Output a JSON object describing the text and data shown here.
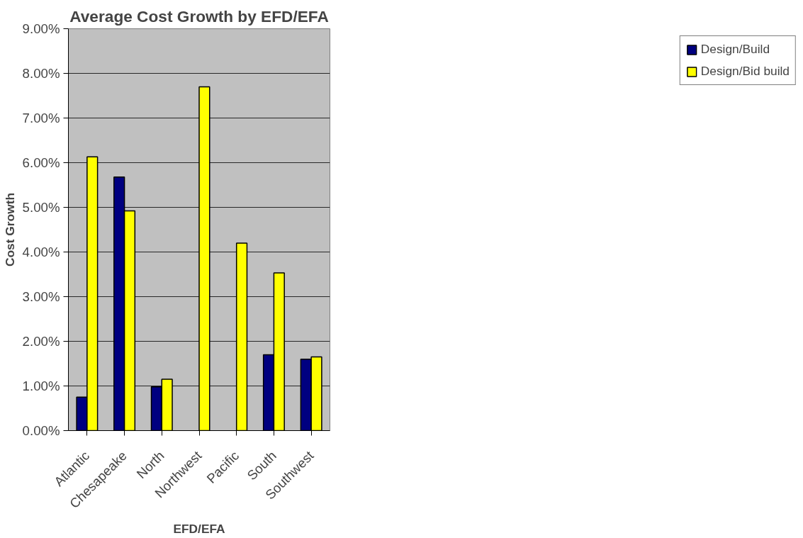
{
  "chart_data": {
    "type": "bar",
    "title": "Average Cost Growth by EFD/EFA",
    "xlabel": "EFD/EFA",
    "ylabel": "Cost Growth",
    "categories": [
      "Atlantic",
      "Chesapeake",
      "North",
      "Northwest",
      "Pacific",
      "South",
      "Southwest"
    ],
    "series": [
      {
        "name": "Design/Build",
        "color": "#000080",
        "values": [
          0.75,
          5.68,
          0.98,
          null,
          null,
          1.7,
          1.6
        ]
      },
      {
        "name": "Design/Bid build",
        "color": "#ffff00",
        "values": [
          6.13,
          4.92,
          1.15,
          7.7,
          4.2,
          3.53,
          1.65
        ]
      }
    ],
    "ylim": [
      0,
      9
    ],
    "yticks": [
      {
        "value": 0,
        "label": "0.00%"
      },
      {
        "value": 1,
        "label": "1.00%"
      },
      {
        "value": 2,
        "label": "2.00%"
      },
      {
        "value": 3,
        "label": "3.00%"
      },
      {
        "value": 4,
        "label": "4.00%"
      },
      {
        "value": 5,
        "label": "5.00%"
      },
      {
        "value": 6,
        "label": "6.00%"
      },
      {
        "value": 7,
        "label": "7.00%"
      },
      {
        "value": 8,
        "label": "8.00%"
      },
      {
        "value": 9,
        "label": "9.00%"
      }
    ],
    "grid": "y",
    "legend": "right"
  }
}
